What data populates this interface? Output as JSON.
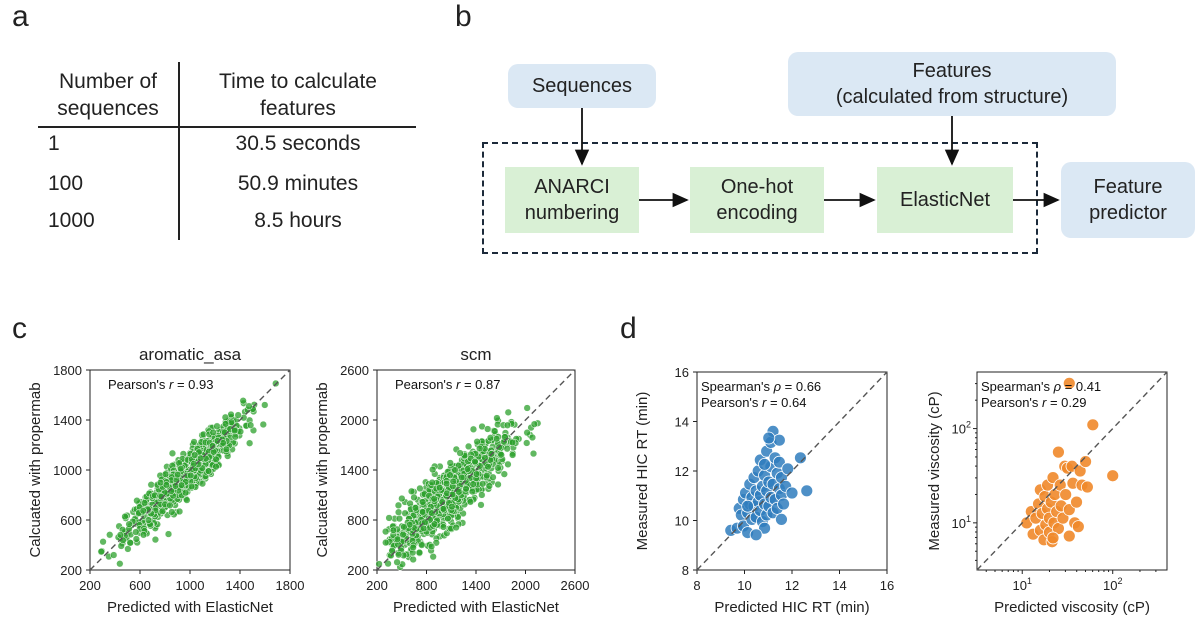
{
  "panels": {
    "a": "a",
    "b": "b",
    "c": "c",
    "d": "d"
  },
  "table": {
    "headers": [
      "Number of sequences",
      "Time to calculate features"
    ],
    "header_lines": [
      [
        "Number of",
        "sequences"
      ],
      [
        "Time to calculate",
        "features"
      ]
    ],
    "rows": [
      [
        "1",
        "30.5 seconds"
      ],
      [
        "100",
        "50.9 minutes"
      ],
      [
        "1000",
        "8.5 hours"
      ]
    ]
  },
  "flow": {
    "sequences": "Sequences",
    "features": [
      "Features",
      "(calculated from structure)"
    ],
    "anarci": [
      "ANARCI",
      "numbering"
    ],
    "onehot": [
      "One-hot",
      "encoding"
    ],
    "elasticnet": "ElasticNet",
    "predictor": [
      "Feature",
      "predictor"
    ],
    "colors": {
      "input_box": "#dbe8f4",
      "model_box": "#d9f0d5",
      "dashed_border": "#1c2a3a"
    }
  },
  "chart_data": [
    {
      "id": "aromatic_asa",
      "type": "scatter",
      "title": "aromatic_asa",
      "xlabel": "Predicted with ElasticNet",
      "ylabel": "Calcuated with propermab",
      "xlim": [
        200,
        1800
      ],
      "ylim": [
        200,
        1800
      ],
      "xticks": [
        "200",
        "600",
        "1000",
        "1400",
        "1800"
      ],
      "yticks": [
        "200",
        "600",
        "1000",
        "1400",
        "1800"
      ],
      "annotation": {
        "prefix": "Pearson's ",
        "symbol": "r",
        "suffix": " = 0.93"
      },
      "color": "#2ca02c",
      "n_points": 900,
      "r": 0.93,
      "center": [
        960,
        950
      ],
      "spread": 230
    },
    {
      "id": "scm",
      "type": "scatter",
      "title": "scm",
      "xlabel": "Predicted with ElasticNet",
      "ylabel": "Calcuated with propermab",
      "xlim": [
        200,
        2600
      ],
      "ylim": [
        200,
        2600
      ],
      "xticks": [
        "200",
        "800",
        "1400",
        "2000",
        "2600"
      ],
      "yticks": [
        "200",
        "800",
        "1400",
        "2000",
        "2600"
      ],
      "annotation": {
        "prefix": "Pearson's ",
        "symbol": "r",
        "suffix": " = 0.87"
      },
      "color": "#2ca02c",
      "n_points": 900,
      "r": 0.87,
      "center": [
        1050,
        1080
      ],
      "spread": 370
    },
    {
      "id": "hic",
      "type": "scatter",
      "xlabel": "Predicted HIC RT (min)",
      "ylabel": "Measured HIC RT (min)",
      "xlim": [
        7,
        16
      ],
      "ylim": [
        7,
        16
      ],
      "xticks": [
        "8",
        "10",
        "12",
        "14",
        "16"
      ],
      "yticks": [
        "8",
        "10",
        "12",
        "14",
        "16"
      ],
      "annotation": [
        {
          "prefix": "Spearman's ",
          "symbol": "ρ",
          "suffix": " = 0.66"
        },
        {
          "prefix": "Pearson's ",
          "symbol": "r",
          "suffix": " = 0.64"
        }
      ],
      "color": "#2f7dbd",
      "points": [
        [
          8.6,
          8.8
        ],
        [
          8.9,
          8.9
        ],
        [
          9.0,
          9.8
        ],
        [
          9.1,
          9.5
        ],
        [
          9.2,
          10.2
        ],
        [
          9.2,
          9.0
        ],
        [
          9.3,
          10.5
        ],
        [
          9.4,
          9.6
        ],
        [
          9.4,
          8.7
        ],
        [
          9.5,
          10.0
        ],
        [
          9.5,
          10.9
        ],
        [
          9.6,
          9.3
        ],
        [
          9.6,
          10.3
        ],
        [
          9.7,
          9.9
        ],
        [
          9.7,
          11.2
        ],
        [
          9.8,
          10.6
        ],
        [
          9.8,
          9.4
        ],
        [
          9.9,
          10.1
        ],
        [
          9.9,
          11.5
        ],
        [
          10.0,
          9.7
        ],
        [
          10.0,
          10.4
        ],
        [
          10.0,
          12.0
        ],
        [
          10.1,
          9.2
        ],
        [
          10.1,
          10.8
        ],
        [
          10.2,
          11.3
        ],
        [
          10.2,
          10.0
        ],
        [
          10.3,
          9.5
        ],
        [
          10.3,
          10.6
        ],
        [
          10.3,
          12.4
        ],
        [
          10.4,
          11.0
        ],
        [
          10.4,
          9.9
        ],
        [
          10.5,
          10.3
        ],
        [
          10.5,
          11.7
        ],
        [
          10.5,
          12.8
        ],
        [
          10.6,
          9.6
        ],
        [
          10.6,
          10.9
        ],
        [
          10.7,
          12.1
        ],
        [
          10.7,
          10.2
        ],
        [
          10.8,
          11.4
        ],
        [
          10.8,
          9.8
        ],
        [
          10.9,
          10.7
        ],
        [
          10.9,
          11.9
        ],
        [
          11.0,
          10.4
        ],
        [
          11.0,
          11.2
        ],
        [
          11.0,
          9.3
        ],
        [
          11.1,
          10.0
        ],
        [
          11.2,
          10.8
        ],
        [
          11.3,
          11.6
        ],
        [
          11.5,
          10.5
        ],
        [
          11.9,
          12.1
        ],
        [
          12.2,
          10.6
        ],
        [
          10.2,
          8.9
        ],
        [
          10.6,
          13.3
        ],
        [
          10.9,
          12.9
        ],
        [
          9.8,
          8.6
        ],
        [
          10.4,
          13.0
        ],
        [
          10.2,
          11.8
        ],
        [
          9.4,
          9.9
        ]
      ]
    },
    {
      "id": "viscosity",
      "type": "scatter",
      "xlabel": "Predicted viscosity (cP)",
      "ylabel": "Measured viscosity (cP)",
      "xscale": "log",
      "yscale": "log",
      "xlim_log10": [
        0.5,
        2.6
      ],
      "ylim_log10": [
        0.5,
        2.6
      ],
      "xticks": [
        {
          "base": "10",
          "exp": "1",
          "value": 1
        },
        {
          "base": "10",
          "exp": "2",
          "value": 2
        }
      ],
      "yticks": [
        {
          "base": "10",
          "exp": "1",
          "value": 1
        },
        {
          "base": "10",
          "exp": "2",
          "value": 2
        }
      ],
      "annotation": [
        {
          "prefix": "Spearman's ",
          "symbol": "ρ",
          "suffix": " = 0.41"
        },
        {
          "prefix": "Pearson's ",
          "symbol": "r",
          "suffix": " = 0.29"
        }
      ],
      "color": "#f0882a",
      "points_log10": [
        [
          1.05,
          1.0
        ],
        [
          1.1,
          1.12
        ],
        [
          1.12,
          0.88
        ],
        [
          1.15,
          1.05
        ],
        [
          1.18,
          1.2
        ],
        [
          1.2,
          0.92
        ],
        [
          1.2,
          1.35
        ],
        [
          1.22,
          1.1
        ],
        [
          1.24,
          0.82
        ],
        [
          1.25,
          1.28
        ],
        [
          1.26,
          0.98
        ],
        [
          1.28,
          1.4
        ],
        [
          1.28,
          1.15
        ],
        [
          1.3,
          0.9
        ],
        [
          1.3,
          1.05
        ],
        [
          1.32,
          1.22
        ],
        [
          1.33,
          0.8
        ],
        [
          1.34,
          1.48
        ],
        [
          1.35,
          1.0
        ],
        [
          1.36,
          1.3
        ],
        [
          1.38,
          1.12
        ],
        [
          1.4,
          0.94
        ],
        [
          1.4,
          1.75
        ],
        [
          1.42,
          1.4
        ],
        [
          1.43,
          1.18
        ],
        [
          1.45,
          1.05
        ],
        [
          1.47,
          1.6
        ],
        [
          1.48,
          1.3
        ],
        [
          1.5,
          1.58
        ],
        [
          1.52,
          0.86
        ],
        [
          1.52,
          1.14
        ],
        [
          1.55,
          1.6
        ],
        [
          1.56,
          1.42
        ],
        [
          1.58,
          1.0
        ],
        [
          1.6,
          1.22
        ],
        [
          1.64,
          1.55
        ],
        [
          1.66,
          1.4
        ],
        [
          1.7,
          1.65
        ],
        [
          1.72,
          1.38
        ],
        [
          1.52,
          2.48
        ],
        [
          1.78,
          2.04
        ],
        [
          2.0,
          1.5
        ],
        [
          1.34,
          0.84
        ],
        [
          1.62,
          0.96
        ]
      ]
    }
  ]
}
